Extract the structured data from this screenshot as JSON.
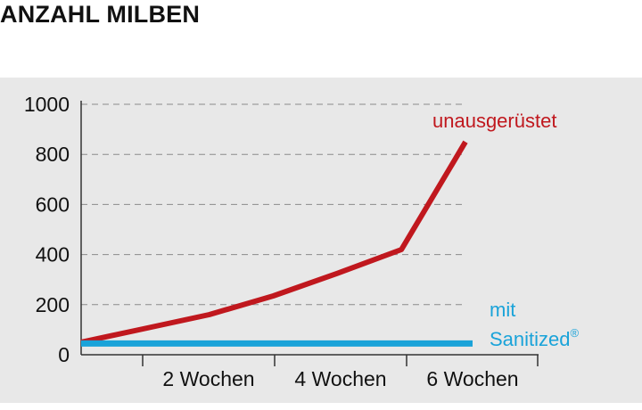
{
  "title": "ANZAHL MILBEN",
  "chart_data": {
    "type": "line",
    "title": "ANZAHL MILBEN",
    "xlabel": "",
    "ylabel": "",
    "ylim": [
      0,
      1000
    ],
    "xlim": [
      0,
      7
    ],
    "yticks": [
      0,
      200,
      400,
      600,
      800,
      1000
    ],
    "ytick_labels": [
      "0",
      "200",
      "400",
      "600",
      "800",
      "1000"
    ],
    "xticks": [
      2,
      4,
      6
    ],
    "xtick_labels": [
      "2 Wochen",
      "4 Wochen",
      "6 Wochen"
    ],
    "grid": true,
    "series": [
      {
        "name": "unausgerüstet",
        "color": "#c0181e",
        "x": [
          0,
          1,
          2,
          3,
          4,
          5,
          6
        ],
        "y": [
          50,
          105,
          160,
          235,
          325,
          420,
          850
        ]
      },
      {
        "name_line1": "mit",
        "name_line2": "Sanitized",
        "name_mark": "®",
        "color": "#1aa3d9",
        "x": [
          0,
          6
        ],
        "y": [
          45,
          45
        ]
      }
    ]
  }
}
